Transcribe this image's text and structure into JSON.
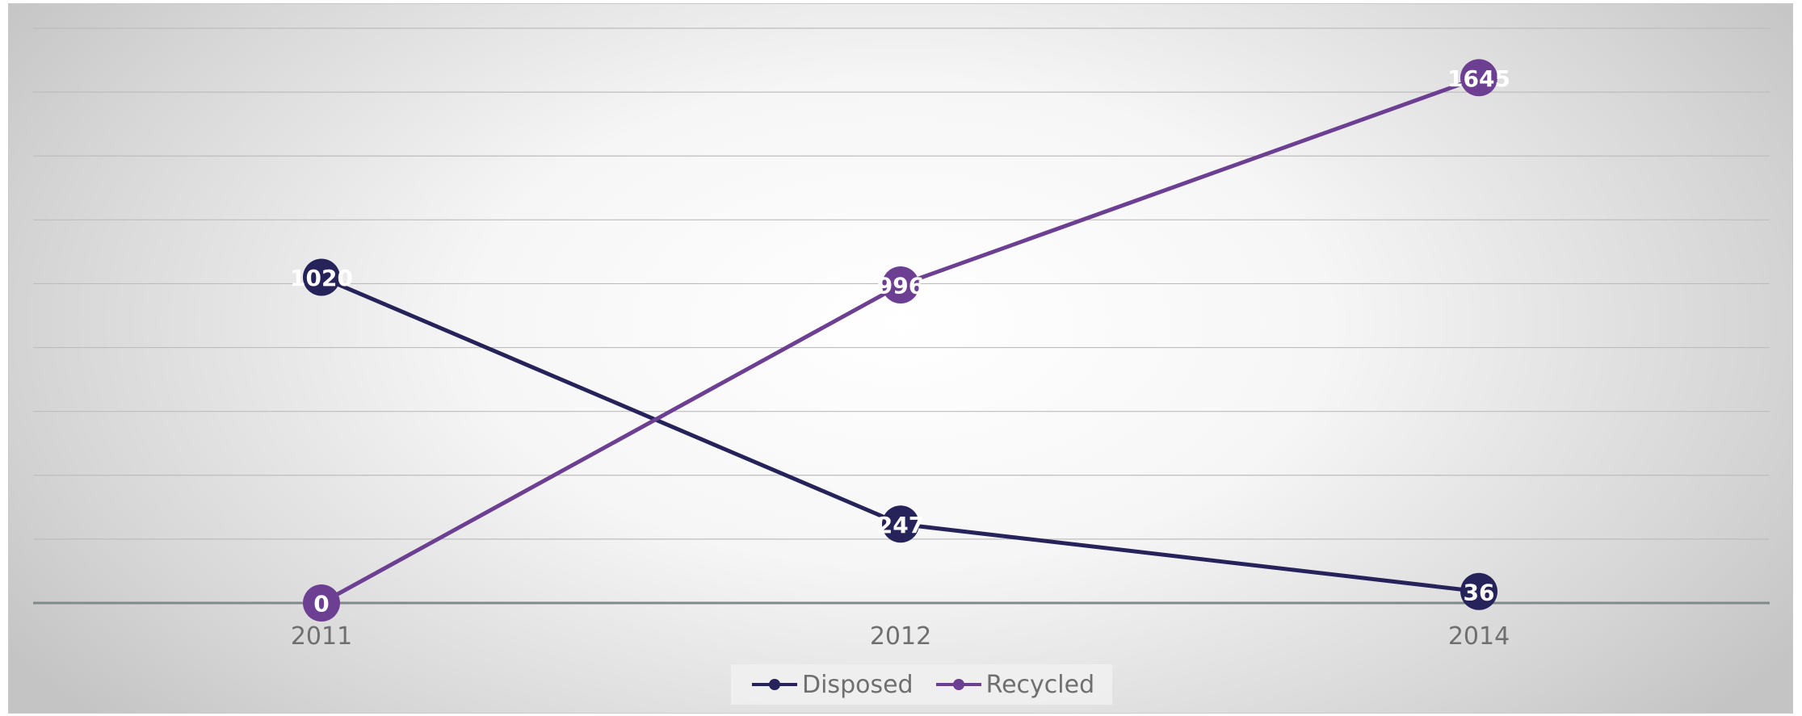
{
  "chart_data": {
    "type": "line",
    "categories": [
      "2011",
      "2012",
      "2014"
    ],
    "series": [
      {
        "name": "Disposed",
        "values": [
          1020,
          247,
          36
        ],
        "color": "#26235a"
      },
      {
        "name": "Recycled",
        "values": [
          0,
          996,
          1645
        ],
        "color": "#6d3f93"
      }
    ],
    "ylim": [
      0,
      1800
    ],
    "grid": true,
    "legend": "bottom",
    "title": "",
    "xlabel": "",
    "ylabel": ""
  }
}
